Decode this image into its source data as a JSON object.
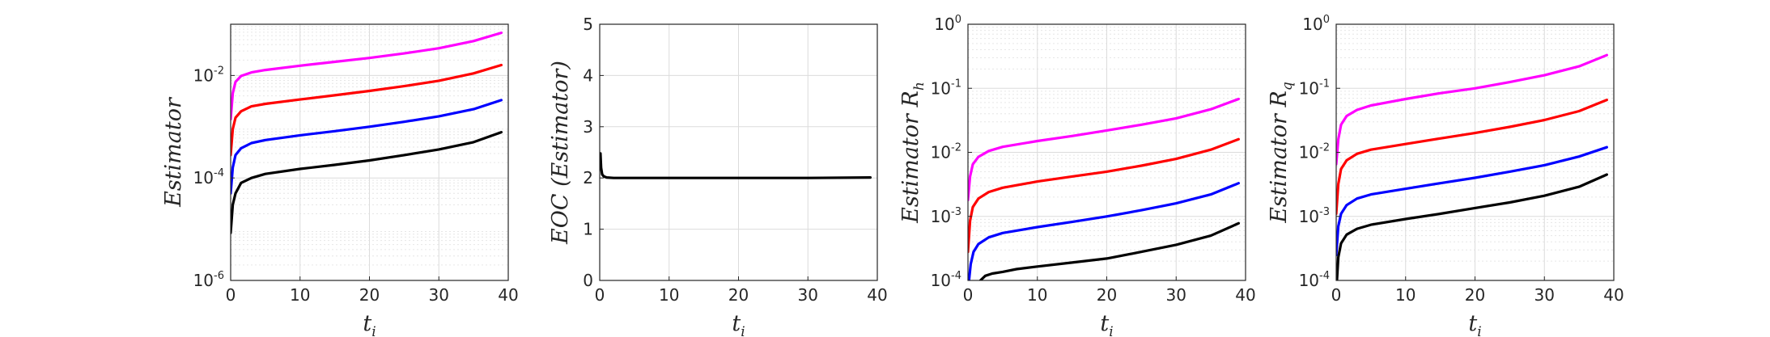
{
  "chart_data": [
    {
      "type": "line",
      "title": "",
      "xlabel": "t",
      "xlabel_sub": "i",
      "ylabel": "Estimator",
      "ylabel_sub": "",
      "xlim": [
        0,
        40
      ],
      "ylim": [
        1e-06,
        0.1
      ],
      "yscale": "log",
      "grid": true,
      "minor_grid": true,
      "xticks": [
        "0",
        "10",
        "20",
        "30",
        "40"
      ],
      "yticks": [
        {
          "base": "10",
          "exp": "-6",
          "value": 1e-06
        },
        {
          "base": "10",
          "exp": "-4",
          "value": 0.0001
        },
        {
          "base": "10",
          "exp": "-2",
          "value": 0.01
        }
      ],
      "series": [
        {
          "color": "#ff00ff",
          "x": [
            0,
            0.3,
            0.7,
            1.5,
            3,
            5,
            10,
            15,
            20,
            25,
            30,
            35,
            39
          ],
          "values": [
            0.0014,
            0.0045,
            0.0075,
            0.0098,
            0.0115,
            0.0128,
            0.0155,
            0.0185,
            0.022,
            0.027,
            0.034,
            0.047,
            0.068
          ]
        },
        {
          "color": "#ff0000",
          "x": [
            0,
            0.3,
            0.7,
            1.5,
            3,
            5,
            10,
            15,
            20,
            25,
            30,
            35,
            39
          ],
          "values": [
            0.00028,
            0.0009,
            0.0015,
            0.002,
            0.0025,
            0.0028,
            0.0034,
            0.0041,
            0.005,
            0.0062,
            0.0079,
            0.011,
            0.016
          ]
        },
        {
          "color": "#0000ff",
          "x": [
            0,
            0.3,
            0.7,
            1.5,
            3,
            5,
            10,
            15,
            20,
            25,
            30,
            35,
            39
          ],
          "values": [
            5e-05,
            0.00016,
            0.00028,
            0.00038,
            0.00048,
            0.00055,
            0.00068,
            0.00082,
            0.001,
            0.00125,
            0.0016,
            0.0022,
            0.0033
          ]
        },
        {
          "color": "#000000",
          "x": [
            0,
            0.3,
            0.7,
            1.5,
            3,
            5,
            10,
            15,
            20,
            25,
            30,
            35,
            39
          ],
          "values": [
            8.5e-06,
            3e-05,
            5e-05,
            8e-05,
            0.0001,
            0.00012,
            0.00015,
            0.00018,
            0.00022,
            0.00028,
            0.00036,
            0.0005,
            0.00078
          ]
        }
      ]
    },
    {
      "type": "line",
      "title": "",
      "xlabel": "t",
      "xlabel_sub": "i",
      "ylabel": "EOC (Estimator)",
      "ylabel_sub": "",
      "xlim": [
        0,
        40
      ],
      "ylim": [
        0,
        5
      ],
      "yscale": "linear",
      "grid": true,
      "minor_grid": false,
      "xticks": [
        "0",
        "10",
        "20",
        "30",
        "40"
      ],
      "yticks": [
        {
          "base": "0",
          "exp": "",
          "value": 0
        },
        {
          "base": "1",
          "exp": "",
          "value": 1
        },
        {
          "base": "2",
          "exp": "",
          "value": 2
        },
        {
          "base": "3",
          "exp": "",
          "value": 3
        },
        {
          "base": "4",
          "exp": "",
          "value": 4
        },
        {
          "base": "5",
          "exp": "",
          "value": 5
        }
      ],
      "series": [
        {
          "color": "#000000",
          "x": [
            0.1,
            0.2,
            0.35,
            0.6,
            1,
            2,
            5,
            10,
            20,
            30,
            39
          ],
          "values": [
            2.48,
            2.2,
            2.07,
            2.03,
            2.01,
            2.0,
            2.0,
            2.0,
            2.0,
            2.0,
            2.01
          ]
        }
      ]
    },
    {
      "type": "line",
      "title": "",
      "xlabel": "t",
      "xlabel_sub": "i",
      "ylabel": "Estimator R",
      "ylabel_sub": "h",
      "xlim": [
        0,
        40
      ],
      "ylim": [
        0.0001,
        1
      ],
      "yscale": "log",
      "grid": true,
      "minor_grid": true,
      "xticks": [
        "0",
        "10",
        "20",
        "30",
        "40"
      ],
      "yticks": [
        {
          "base": "10",
          "exp": "-4",
          "value": 0.0001
        },
        {
          "base": "10",
          "exp": "-3",
          "value": 0.001
        },
        {
          "base": "10",
          "exp": "-2",
          "value": 0.01
        },
        {
          "base": "10",
          "exp": "-1",
          "value": 0.1
        },
        {
          "base": "10",
          "exp": "0",
          "value": 1
        }
      ],
      "series": [
        {
          "color": "#ff00ff",
          "x": [
            0,
            0.3,
            0.7,
            1.5,
            3,
            5,
            10,
            15,
            20,
            25,
            30,
            35,
            39
          ],
          "values": [
            0.0018,
            0.0042,
            0.0065,
            0.0085,
            0.0105,
            0.0122,
            0.015,
            0.018,
            0.022,
            0.027,
            0.034,
            0.047,
            0.068
          ]
        },
        {
          "color": "#ff0000",
          "x": [
            0,
            0.3,
            0.7,
            1.5,
            3,
            5,
            10,
            15,
            20,
            25,
            30,
            35,
            39
          ],
          "values": [
            0.00028,
            0.00085,
            0.0014,
            0.0019,
            0.0024,
            0.0028,
            0.0035,
            0.0042,
            0.005,
            0.0062,
            0.0079,
            0.011,
            0.016
          ]
        },
        {
          "color": "#0000ff",
          "x": [
            0.15,
            0.4,
            0.8,
            1.5,
            3,
            5,
            10,
            15,
            20,
            25,
            30,
            35,
            39
          ],
          "values": [
            0.0001,
            0.00018,
            0.00028,
            0.00037,
            0.00047,
            0.00055,
            0.00068,
            0.00082,
            0.001,
            0.00125,
            0.0016,
            0.0022,
            0.0033
          ]
        },
        {
          "color": "#000000",
          "x": [
            1.8,
            2.5,
            3.5,
            5,
            7,
            10,
            15,
            20,
            25,
            30,
            35,
            39
          ],
          "values": [
            0.0001,
            0.000118,
            0.000128,
            0.000136,
            0.00015,
            0.000165,
            0.00019,
            0.00022,
            0.00028,
            0.00036,
            0.0005,
            0.00078
          ]
        }
      ]
    },
    {
      "type": "line",
      "title": "",
      "xlabel": "t",
      "xlabel_sub": "i",
      "ylabel": "Estimator R",
      "ylabel_sub": "q",
      "xlim": [
        0,
        40
      ],
      "ylim": [
        0.0001,
        1
      ],
      "yscale": "log",
      "grid": true,
      "minor_grid": true,
      "xticks": [
        "0",
        "10",
        "20",
        "30",
        "40"
      ],
      "yticks": [
        {
          "base": "10",
          "exp": "-4",
          "value": 0.0001
        },
        {
          "base": "10",
          "exp": "-3",
          "value": 0.001
        },
        {
          "base": "10",
          "exp": "-2",
          "value": 0.01
        },
        {
          "base": "10",
          "exp": "-1",
          "value": 0.1
        },
        {
          "base": "10",
          "exp": "0",
          "value": 1
        }
      ],
      "series": [
        {
          "color": "#ff00ff",
          "x": [
            0,
            0.3,
            0.7,
            1.5,
            3,
            5,
            10,
            15,
            20,
            25,
            30,
            35,
            39
          ],
          "values": [
            0.0065,
            0.016,
            0.027,
            0.037,
            0.046,
            0.054,
            0.068,
            0.084,
            0.1,
            0.125,
            0.16,
            0.22,
            0.33
          ]
        },
        {
          "color": "#ff0000",
          "x": [
            0,
            0.3,
            0.7,
            1.5,
            3,
            5,
            10,
            15,
            20,
            25,
            30,
            35,
            39
          ],
          "values": [
            0.0011,
            0.0032,
            0.0055,
            0.0075,
            0.0095,
            0.011,
            0.0135,
            0.0165,
            0.02,
            0.025,
            0.032,
            0.044,
            0.066
          ]
        },
        {
          "color": "#0000ff",
          "x": [
            0,
            0.3,
            0.7,
            1.5,
            3,
            5,
            10,
            15,
            20,
            25,
            30,
            35,
            39
          ],
          "values": [
            0.00025,
            0.0007,
            0.0011,
            0.0015,
            0.0019,
            0.0022,
            0.0027,
            0.0033,
            0.004,
            0.005,
            0.0063,
            0.0086,
            0.012
          ]
        },
        {
          "color": "#000000",
          "x": [
            0.1,
            0.3,
            0.7,
            1.5,
            3,
            5,
            10,
            15,
            20,
            25,
            30,
            35,
            39
          ],
          "values": [
            0.0001,
            0.00023,
            0.00038,
            0.00052,
            0.00064,
            0.00074,
            0.00091,
            0.0011,
            0.00135,
            0.00165,
            0.0021,
            0.0029,
            0.0045
          ]
        }
      ]
    }
  ]
}
